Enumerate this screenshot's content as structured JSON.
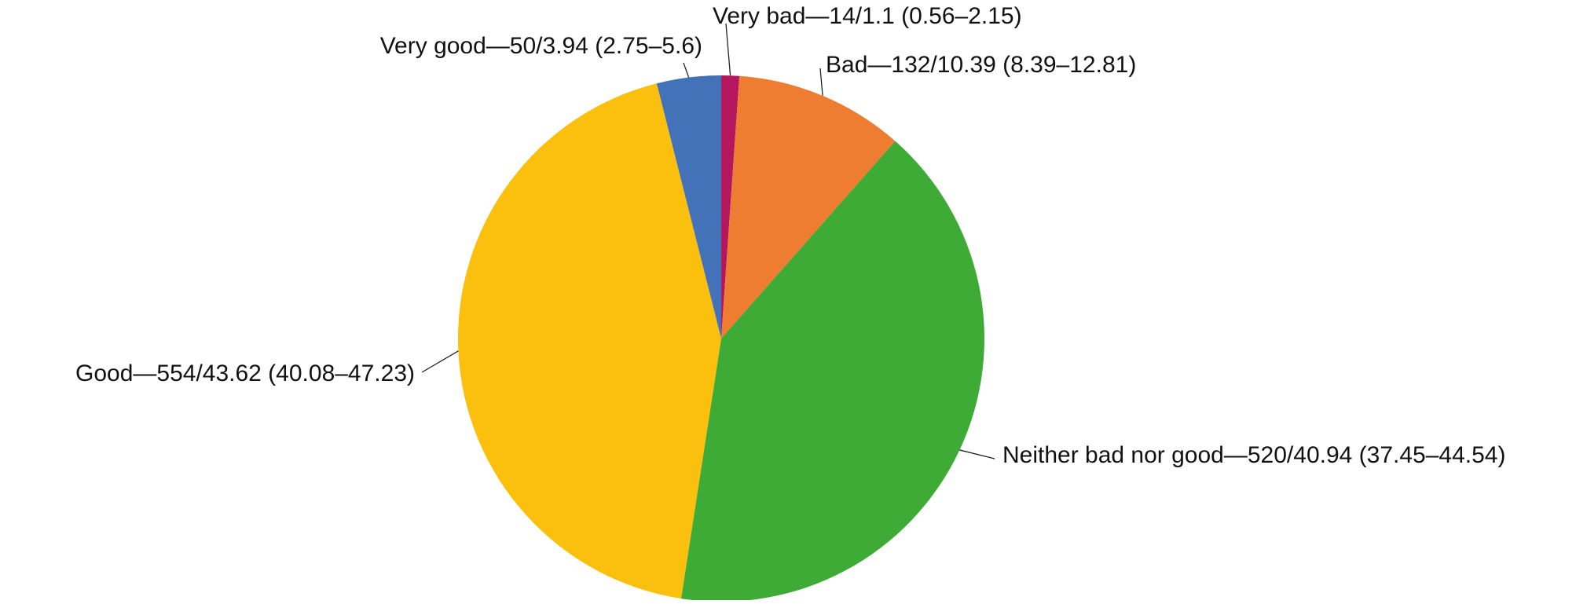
{
  "chart_data": {
    "type": "pie",
    "values": [
      1.1,
      10.39,
      40.94,
      43.62,
      3.94
    ],
    "value_labels": [
      "Very bad—14/1.1 (0.56–2.15)",
      "Bad—132/10.39 (8.39–12.81)",
      "Neither bad nor good—520/40.94 (37.45–44.54)",
      "Good—554/43.62 (40.08–47.23)",
      "Very good—50/3.94 (2.75–5.6)"
    ],
    "colors": [
      "#b5175e",
      "#ee7d31",
      "#3dab36",
      "#fbbf0d",
      "#4472b8"
    ]
  }
}
